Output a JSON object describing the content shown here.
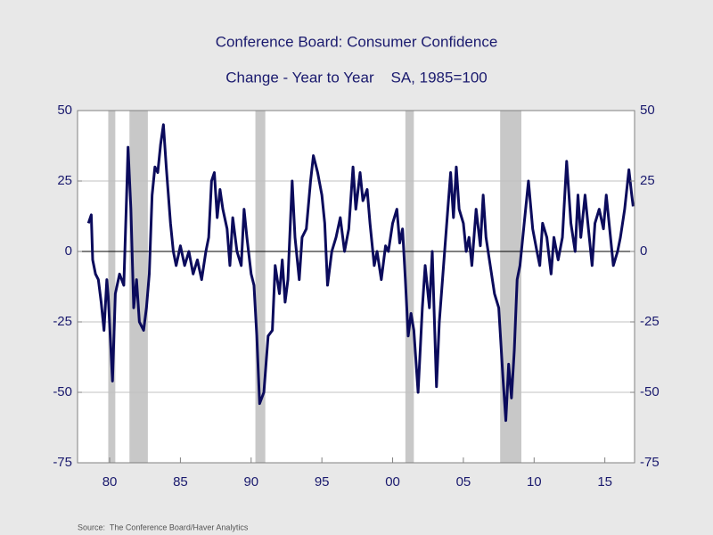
{
  "chart_data": {
    "type": "line",
    "title": "Conference Board: Consumer Confidence",
    "subtitle": "Change - Year to Year    SA, 1985=100",
    "source": "Source:  The Conference Board/Haver Analytics",
    "color": "#0b0b5c",
    "shade_color": "#c8c8c8",
    "shaded_periods": [
      [
        1979.9,
        1980.4
      ],
      [
        1981.4,
        1982.7
      ],
      [
        1990.3,
        1991.0
      ],
      [
        2000.9,
        2001.5
      ],
      [
        2007.6,
        2009.1
      ]
    ],
    "x": [
      1978.5,
      1978.7,
      1978.8,
      1979.0,
      1979.2,
      1979.4,
      1979.6,
      1979.8,
      1979.9,
      1980.2,
      1980.4,
      1980.7,
      1981.0,
      1981.2,
      1981.3,
      1981.5,
      1981.7,
      1981.9,
      1982.1,
      1982.4,
      1982.6,
      1982.8,
      1983.0,
      1983.2,
      1983.4,
      1983.6,
      1983.8,
      1984.0,
      1984.3,
      1984.5,
      1984.7,
      1985.0,
      1985.3,
      1985.6,
      1985.9,
      1986.2,
      1986.5,
      1986.8,
      1987.0,
      1987.2,
      1987.4,
      1987.6,
      1987.8,
      1988.0,
      1988.3,
      1988.5,
      1988.7,
      1989.0,
      1989.3,
      1989.5,
      1989.7,
      1990.0,
      1990.2,
      1990.4,
      1990.6,
      1990.9,
      1991.2,
      1991.5,
      1991.7,
      1992.0,
      1992.2,
      1992.4,
      1992.6,
      1992.9,
      1993.1,
      1993.4,
      1993.6,
      1993.9,
      1994.2,
      1994.4,
      1994.7,
      1995.0,
      1995.2,
      1995.4,
      1995.7,
      1996.0,
      1996.3,
      1996.6,
      1996.9,
      1997.2,
      1997.4,
      1997.7,
      1997.9,
      1998.2,
      1998.4,
      1998.7,
      1998.9,
      1999.2,
      1999.5,
      1999.7,
      2000.0,
      2000.3,
      2000.5,
      2000.7,
      2000.9,
      2001.1,
      2001.3,
      2001.5,
      2001.8,
      2002.1,
      2002.3,
      2002.6,
      2002.8,
      2003.1,
      2003.3,
      2003.6,
      2003.9,
      2004.1,
      2004.3,
      2004.5,
      2004.7,
      2005.0,
      2005.2,
      2005.4,
      2005.6,
      2005.9,
      2006.2,
      2006.4,
      2006.6,
      2006.9,
      2007.2,
      2007.5,
      2007.8,
      2008.0,
      2008.2,
      2008.4,
      2008.6,
      2008.8,
      2009.0,
      2009.3,
      2009.6,
      2009.9,
      2010.2,
      2010.4,
      2010.6,
      2010.9,
      2011.2,
      2011.4,
      2011.7,
      2012.0,
      2012.3,
      2012.6,
      2012.9,
      2013.1,
      2013.3,
      2013.6,
      2013.9,
      2014.1,
      2014.3,
      2014.6,
      2014.9,
      2015.1,
      2015.4,
      2015.6,
      2015.9,
      2016.1,
      2016.4,
      2016.7,
      2016.9,
      2017.0
    ],
    "values": [
      10,
      13,
      -3,
      -8,
      -10,
      -18,
      -28,
      -10,
      -16,
      -46,
      -15,
      -8,
      -12,
      20,
      37,
      15,
      -20,
      -10,
      -25,
      -28,
      -20,
      -8,
      20,
      30,
      28,
      38,
      45,
      30,
      10,
      0,
      -5,
      2,
      -5,
      0,
      -8,
      -3,
      -10,
      0,
      5,
      25,
      28,
      12,
      22,
      15,
      8,
      -5,
      12,
      0,
      -5,
      15,
      5,
      -8,
      -12,
      -30,
      -54,
      -50,
      -30,
      -28,
      -5,
      -15,
      -3,
      -18,
      -10,
      25,
      5,
      -10,
      5,
      8,
      25,
      34,
      28,
      20,
      10,
      -12,
      0,
      5,
      12,
      0,
      8,
      30,
      15,
      28,
      18,
      22,
      10,
      -5,
      0,
      -10,
      2,
      0,
      10,
      15,
      3,
      8,
      -10,
      -30,
      -22,
      -28,
      -50,
      -20,
      -5,
      -20,
      0,
      -48,
      -25,
      -5,
      15,
      28,
      12,
      30,
      15,
      10,
      0,
      5,
      -5,
      15,
      2,
      20,
      5,
      -5,
      -15,
      -20,
      -45,
      -60,
      -40,
      -52,
      -35,
      -10,
      -5,
      10,
      25,
      8,
      0,
      -5,
      10,
      5,
      -8,
      5,
      -3,
      5,
      32,
      10,
      0,
      20,
      5,
      20,
      5,
      -5,
      10,
      15,
      8,
      20,
      5,
      -5,
      0,
      5,
      15,
      29,
      20,
      16
    ],
    "xlim": [
      1977.73,
      2017.1
    ],
    "xticks": [
      {
        "value": 1980,
        "label": "80"
      },
      {
        "value": 1985,
        "label": "85"
      },
      {
        "value": 1990,
        "label": "90"
      },
      {
        "value": 1995,
        "label": "95"
      },
      {
        "value": 2000,
        "label": "00"
      },
      {
        "value": 2005,
        "label": "05"
      },
      {
        "value": 2010,
        "label": "10"
      },
      {
        "value": 2015,
        "label": "15"
      }
    ],
    "ylim": [
      -75,
      50
    ],
    "yticks": [
      -75,
      -50,
      -25,
      0,
      25,
      50
    ],
    "y2lim": [
      -75,
      50
    ],
    "y2ticks": [
      -75,
      -50,
      -25,
      0,
      25,
      50
    ],
    "grid": true
  }
}
